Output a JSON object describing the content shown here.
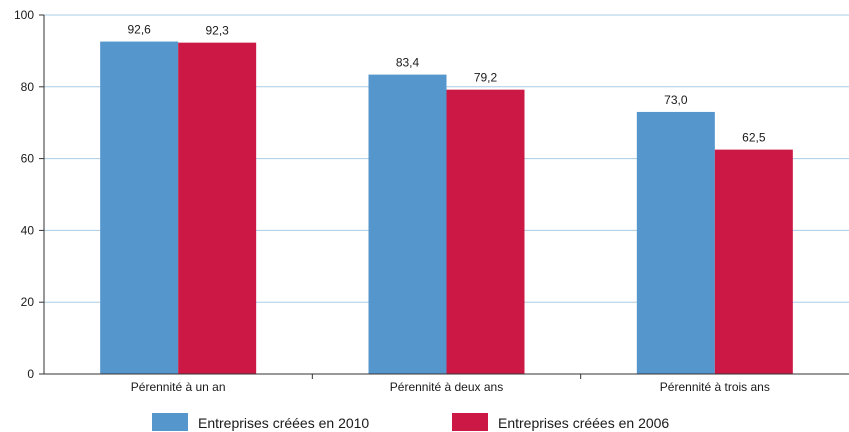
{
  "chart_data": {
    "type": "bar",
    "ylabel": "",
    "categories": [
      "Pérennité à un an",
      "Pérennité à deux ans",
      "Pérennité à trois ans"
    ],
    "series": [
      {
        "name": "Entreprises créées en 2010",
        "color": "#5596cc",
        "values": [
          92.6,
          83.4,
          73.0
        ],
        "labels": [
          "92,6",
          "83,4",
          "73,0"
        ]
      },
      {
        "name": "Entreprises créées en 2006",
        "color": "#cc1844",
        "values": [
          92.3,
          79.2,
          62.5
        ],
        "labels": [
          "92,3",
          "79,2",
          "62,5"
        ]
      }
    ],
    "ylim": [
      0,
      100
    ],
    "yticks": [
      0,
      20,
      40,
      60,
      80,
      100
    ],
    "grid": true,
    "legend_position": "bottom"
  }
}
